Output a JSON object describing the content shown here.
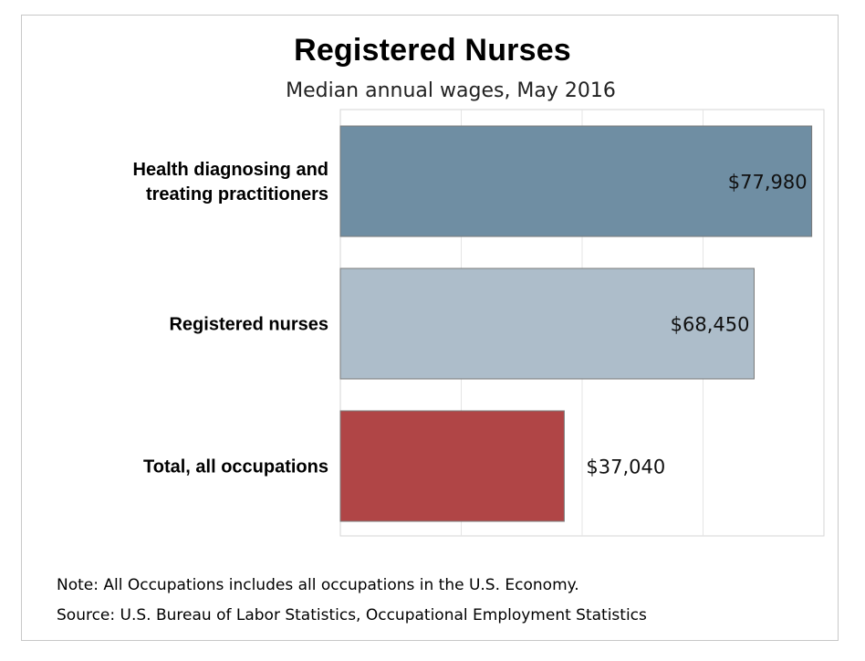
{
  "chart_data": {
    "type": "bar",
    "orientation": "horizontal",
    "title": "Registered Nurses",
    "subtitle": "Median annual wages, May 2016",
    "categories": [
      [
        "Health diagnosing and",
        "treating practitioners"
      ],
      [
        "Registered nurses"
      ],
      [
        "Total, all occupations"
      ]
    ],
    "values": [
      77980,
      68450,
      37040
    ],
    "value_labels": [
      "$77,980",
      "$68,450",
      "$37,040"
    ],
    "colors": [
      "#6f8ea3",
      "#adbdca",
      "#b04546"
    ],
    "xlim": [
      0,
      80000
    ],
    "grid": true,
    "xlabel": "",
    "ylabel": ""
  },
  "notes": {
    "note": "Note: All Occupations includes all occupations in the U.S. Economy.",
    "source": "Source: U.S. Bureau of Labor Statistics, Occupational Employment Statistics"
  }
}
